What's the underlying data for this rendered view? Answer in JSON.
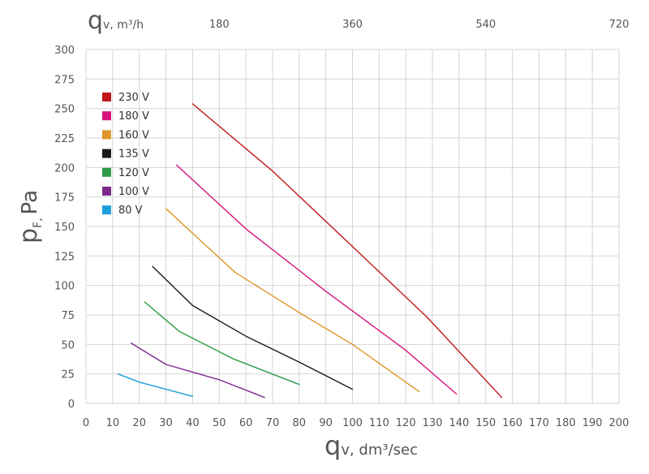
{
  "chart_data": {
    "type": "line",
    "xlabel_main": "q",
    "xlabel_sub": "v, dm³/sec",
    "ylabel_main": "p",
    "ylabel_sub": "F,",
    "ylabel_unit": "Pa",
    "x2label_main": "q",
    "x2label_sub": "v, m³/h",
    "xlim": [
      0,
      200
    ],
    "ylim": [
      0,
      300
    ],
    "x_ticks": [
      0,
      10,
      20,
      30,
      40,
      50,
      60,
      70,
      80,
      90,
      100,
      110,
      120,
      130,
      140,
      150,
      160,
      170,
      180,
      190,
      200
    ],
    "y_ticks": [
      0,
      25,
      50,
      75,
      100,
      125,
      150,
      175,
      200,
      225,
      250,
      275,
      300
    ],
    "x2_ticks": [
      {
        "label": "180",
        "x": 50
      },
      {
        "label": "360",
        "x": 100
      },
      {
        "label": "540",
        "x": 150
      },
      {
        "label": "720",
        "x": 200
      }
    ],
    "grid": true,
    "legend_position": "top-left",
    "series": [
      {
        "name": "230 V",
        "color": "#c0161c",
        "points": [
          [
            40,
            254
          ],
          [
            70,
            197
          ],
          [
            100,
            133
          ],
          [
            128,
            73
          ],
          [
            156,
            5
          ]
        ]
      },
      {
        "name": "180 V",
        "color": "#d6127a",
        "points": [
          [
            34,
            202
          ],
          [
            60,
            148
          ],
          [
            90,
            95
          ],
          [
            120,
            45
          ],
          [
            139,
            8
          ]
        ]
      },
      {
        "name": "160 V",
        "color": "#e0952a",
        "points": [
          [
            30,
            165
          ],
          [
            56,
            111
          ],
          [
            80,
            77
          ],
          [
            100,
            50
          ],
          [
            125,
            10
          ]
        ]
      },
      {
        "name": "135 V",
        "color": "#1a1a1a",
        "points": [
          [
            25,
            116
          ],
          [
            40,
            83
          ],
          [
            60,
            57
          ],
          [
            80,
            35
          ],
          [
            100,
            12
          ]
        ]
      },
      {
        "name": "120 V",
        "color": "#2e9a48",
        "points": [
          [
            22,
            86
          ],
          [
            35,
            61
          ],
          [
            55,
            38
          ],
          [
            80,
            16
          ]
        ]
      },
      {
        "name": "100 V",
        "color": "#7d2a8e",
        "points": [
          [
            17,
            51
          ],
          [
            30,
            33
          ],
          [
            50,
            20
          ],
          [
            67,
            5
          ]
        ]
      },
      {
        "name": "80 V",
        "color": "#1e9fdc",
        "points": [
          [
            12,
            25
          ],
          [
            20,
            18
          ],
          [
            30,
            12
          ],
          [
            40,
            6
          ]
        ]
      }
    ]
  }
}
